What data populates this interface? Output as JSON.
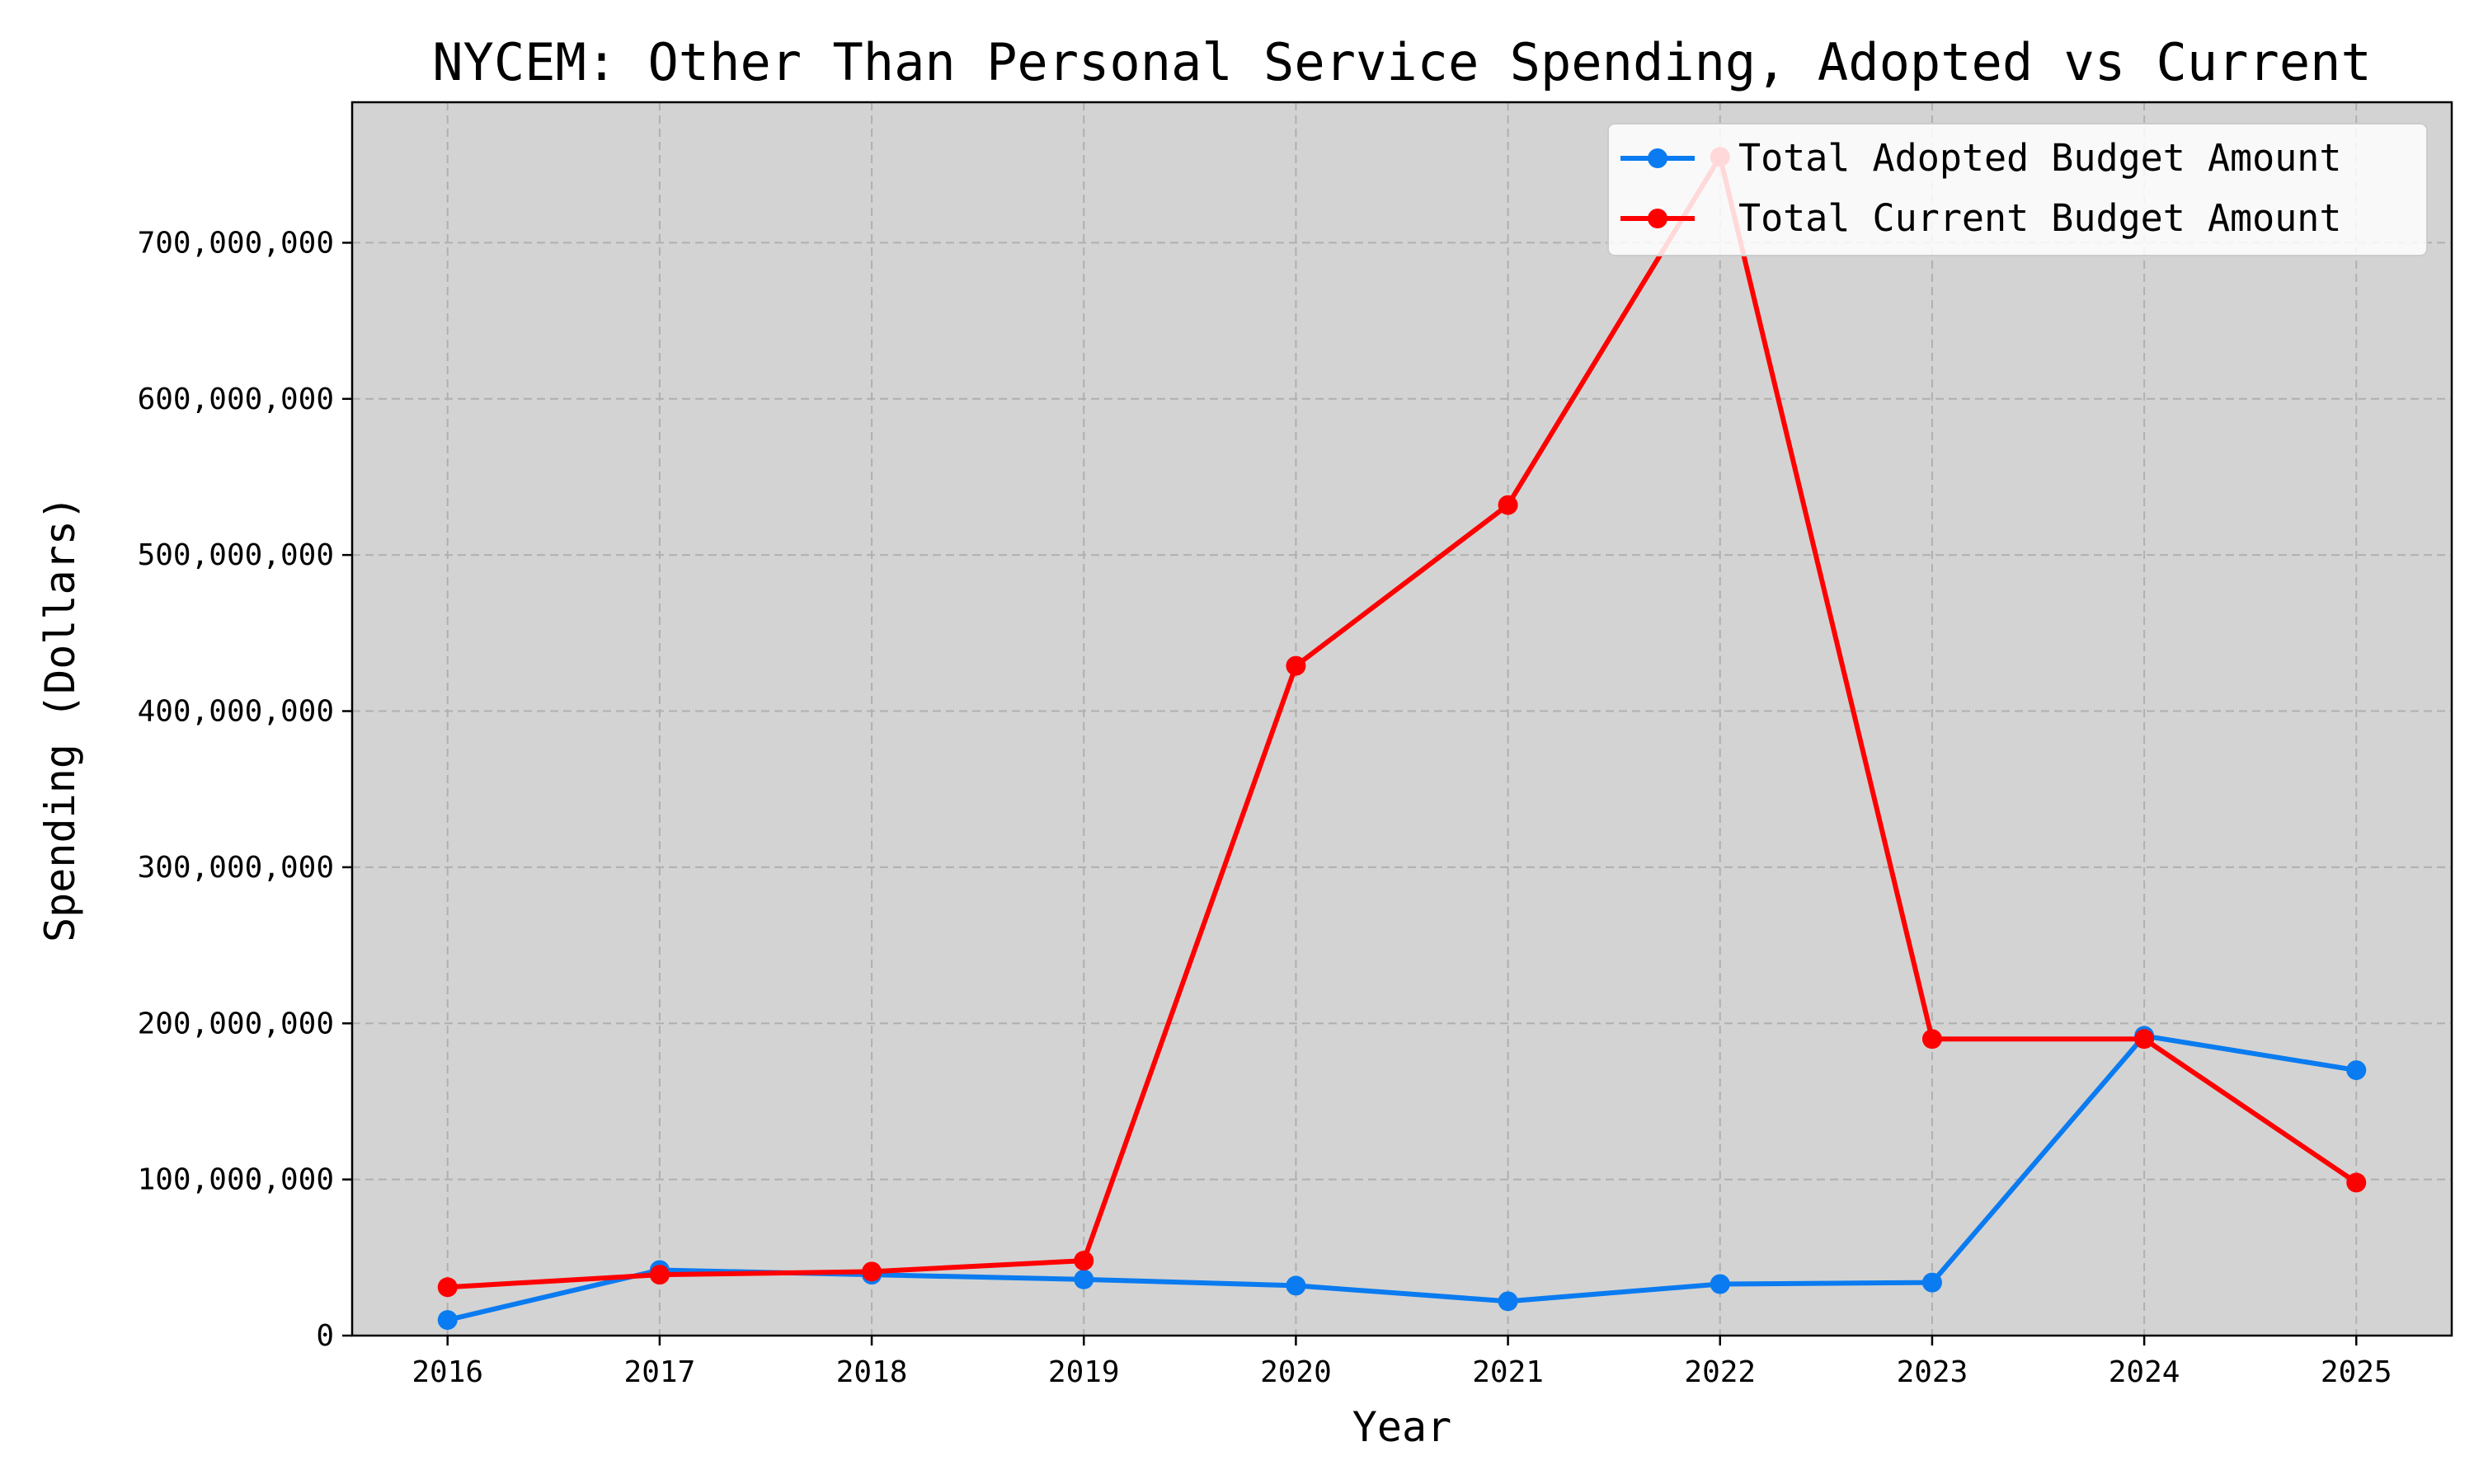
{
  "chart_data": {
    "type": "line",
    "title": "NYCEM: Other Than Personal Service Spending, Adopted vs Current",
    "xlabel": "Year",
    "ylabel": "Spending (Dollars)",
    "x": [
      2016,
      2017,
      2018,
      2019,
      2020,
      2021,
      2022,
      2023,
      2024,
      2025
    ],
    "x_tick_labels": [
      "2016",
      "2017",
      "2018",
      "2019",
      "2020",
      "2021",
      "2022",
      "2023",
      "2024",
      "2025"
    ],
    "xlim": [
      2015.55,
      2025.45
    ],
    "ylim": [
      0,
      790000000
    ],
    "y_ticks": [
      0,
      100000000,
      200000000,
      300000000,
      400000000,
      500000000,
      600000000,
      700000000
    ],
    "y_tick_labels": [
      "0",
      "100,000,000",
      "200,000,000",
      "300,000,000",
      "400,000,000",
      "500,000,000",
      "600,000,000",
      "700,000,000"
    ],
    "grid": true,
    "legend_position": "top-right",
    "plot_background": "#d3d3d3",
    "series": [
      {
        "name": "Total Adopted Budget Amount",
        "color": "#0a7bf0",
        "values": [
          10000000,
          42000000,
          39000000,
          36000000,
          32000000,
          22000000,
          33000000,
          34000000,
          192000000,
          170000000
        ]
      },
      {
        "name": "Total Current Budget Amount",
        "color": "#ff0000",
        "values": [
          31000000,
          39000000,
          41000000,
          48000000,
          429000000,
          532000000,
          755000000,
          190000000,
          190000000,
          98000000
        ]
      }
    ]
  }
}
